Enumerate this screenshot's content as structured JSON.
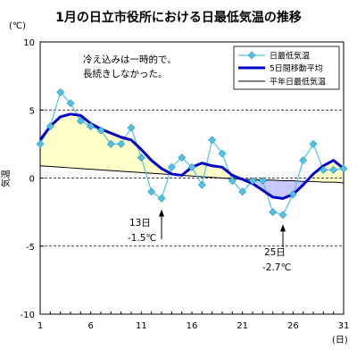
{
  "chart_data": {
    "type": "line",
    "title": "1月の日立市役所における日最低気温の推移",
    "ylabel": "気温",
    "y_unit": "(℃)",
    "x_unit": "(日)",
    "xlim": [
      1,
      31
    ],
    "ylim": [
      -10,
      10
    ],
    "x_ticks": [
      1,
      6,
      11,
      16,
      21,
      26,
      31
    ],
    "y_ticks": [
      10,
      5,
      0,
      -5,
      -10
    ],
    "grid": "dashed horizontal at -5, 0, 5",
    "legend_position": "top-right",
    "x": [
      1,
      2,
      3,
      4,
      5,
      6,
      7,
      8,
      9,
      10,
      11,
      12,
      13,
      14,
      15,
      16,
      17,
      18,
      19,
      20,
      21,
      22,
      23,
      24,
      25,
      26,
      27,
      28,
      29,
      30,
      31
    ],
    "series": [
      {
        "name": "日最低気温",
        "color": "#4fc3e8",
        "values": [
          2.5,
          3.8,
          6.3,
          5.5,
          4.2,
          3.8,
          3.5,
          2.5,
          2.5,
          3.7,
          1.5,
          -1.0,
          -1.5,
          0.8,
          1.5,
          0.8,
          -0.5,
          2.8,
          1.8,
          -0.2,
          -1.0,
          -0.2,
          -0.2,
          -2.5,
          -2.7,
          -1.2,
          1.3,
          2.5,
          0.6,
          0.6,
          0.7
        ]
      },
      {
        "name": "5日間移動平均",
        "color": "#0000cc",
        "values": [
          2.8,
          3.8,
          4.5,
          4.7,
          4.6,
          4.0,
          3.6,
          3.3,
          3.0,
          2.8,
          2.1,
          1.3,
          0.7,
          0.3,
          0.2,
          0.8,
          1.1,
          0.9,
          0.8,
          0.2,
          -0.1,
          -0.4,
          -0.9,
          -1.4,
          -1.5,
          -1.2,
          -0.5,
          0.3,
          0.9,
          1.3,
          0.7
        ]
      },
      {
        "name": "平年日最低気温",
        "color": "#000000",
        "values": [
          0.9,
          0.85,
          0.8,
          0.75,
          0.7,
          0.65,
          0.6,
          0.55,
          0.5,
          0.45,
          0.4,
          0.35,
          0.3,
          0.25,
          0.2,
          0.15,
          0.1,
          0.05,
          0.0,
          -0.05,
          -0.1,
          -0.1,
          -0.15,
          -0.15,
          -0.2,
          -0.2,
          -0.25,
          -0.25,
          -0.3,
          -0.3,
          -0.35
        ]
      }
    ],
    "fill_colors": {
      "above_normal": "#ffffc8",
      "below_normal": "#c8c8ff"
    },
    "annotations": [
      {
        "line1": "冷え込みは一時的で、",
        "line2": "長続きしなかった。"
      },
      {
        "day": 13,
        "value": -1.5,
        "line1": "13日",
        "line2": "-1.5℃"
      },
      {
        "day": 25,
        "value": -2.7,
        "line1": "25日",
        "line2": "-2.7℃"
      }
    ]
  }
}
